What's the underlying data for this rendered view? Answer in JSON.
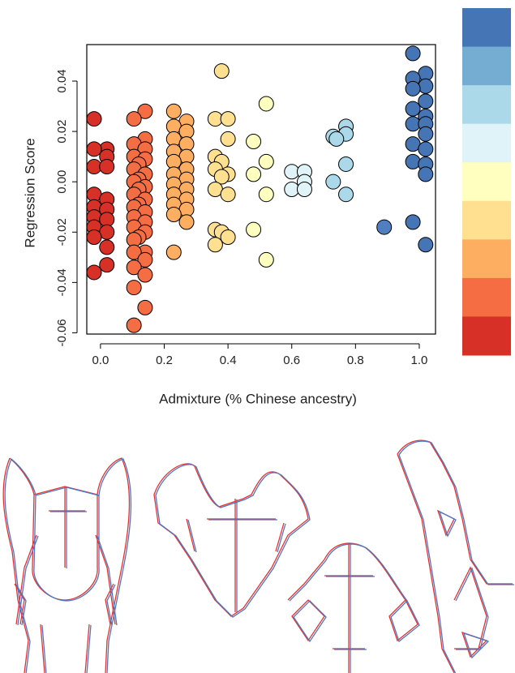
{
  "chart_data": {
    "type": "scatter",
    "x_label": "Admixture (% Chinese ancestry)",
    "y_label": "Regression Score",
    "xlim": [
      -0.043,
      1.051
    ],
    "ylim": [
      -0.0605,
      0.0545
    ],
    "xticks": [
      {
        "value": 0,
        "label": "0.0"
      },
      0.2,
      0.4,
      0.6,
      0.8,
      {
        "value": 1,
        "label": "1.0"
      }
    ],
    "yticks": [
      -0.06,
      -0.04,
      -0.02,
      {
        "value": 0,
        "label": "0.00"
      },
      0.02,
      0.04
    ],
    "colorbar": [
      "#4575b4",
      "#74add1",
      "#abd9e9",
      "#e0f3f8",
      "#ffffbf",
      "#fee090",
      "#fdae61",
      "#f46d43",
      "#d73027"
    ],
    "series": [
      {
        "color": "#d73027",
        "x": [
          -0.02,
          0.02,
          -0.02,
          0.02,
          -0.02,
          0.02,
          -0.02,
          0.02,
          -0.02,
          0.02,
          -0.02,
          0.02,
          -0.02,
          0.02,
          -0.02,
          0.02,
          0.02,
          -0.02
        ],
        "values": [
          0.025,
          0.013,
          0.013,
          0.01,
          0.006,
          0.006,
          -0.005,
          -0.007,
          -0.01,
          -0.011,
          -0.014,
          -0.015,
          -0.018,
          -0.02,
          -0.022,
          -0.026,
          -0.033,
          -0.036
        ]
      },
      {
        "color": "#f46d43",
        "x": [
          0.14,
          0.105,
          0.14,
          0.105,
          0.14,
          0.105,
          0.14,
          0.12,
          0.105,
          0.14,
          0.12,
          0.105,
          0.14,
          0.12,
          0.105,
          0.14,
          0.12,
          0.105,
          0.14,
          0.105,
          0.14,
          0.105,
          0.14,
          0.12,
          0.105,
          0.14,
          0.105,
          0.14,
          0.105,
          0.14,
          0.105,
          0.14,
          0.105
        ],
        "values": [
          0.028,
          0.025,
          0.017,
          0.015,
          0.013,
          0.01,
          0.009,
          0.007,
          0.005,
          0.003,
          0.001,
          0.0,
          -0.002,
          -0.003,
          -0.005,
          -0.007,
          -0.009,
          -0.01,
          -0.012,
          -0.014,
          -0.016,
          -0.018,
          -0.02,
          -0.022,
          -0.023,
          -0.028,
          -0.028,
          -0.031,
          -0.034,
          -0.037,
          -0.042,
          -0.05,
          -0.057
        ]
      },
      {
        "color": "#fdae61",
        "x": [
          0.23,
          0.27,
          0.23,
          0.27,
          0.23,
          0.27,
          0.23,
          0.27,
          0.23,
          0.27,
          0.23,
          0.27,
          0.23,
          0.27,
          0.23,
          0.27,
          0.23,
          0.27,
          0.23,
          0.27,
          0.23
        ],
        "values": [
          0.028,
          0.024,
          0.022,
          0.02,
          0.017,
          0.015,
          0.012,
          0.01,
          0.008,
          0.005,
          0.003,
          0.001,
          -0.001,
          -0.003,
          -0.005,
          -0.007,
          -0.009,
          -0.011,
          -0.013,
          -0.016,
          -0.028
        ]
      },
      {
        "color": "#fee090",
        "x": [
          0.38,
          0.36,
          0.4,
          0.4,
          0.36,
          0.38,
          0.36,
          0.4,
          0.38,
          0.36,
          0.4,
          0.36,
          0.38,
          0.4,
          0.36
        ],
        "values": [
          0.044,
          0.025,
          0.025,
          0.017,
          0.01,
          0.008,
          0.005,
          0.003,
          0.002,
          -0.003,
          -0.005,
          -0.019,
          -0.02,
          -0.022,
          -0.025
        ]
      },
      {
        "color": "#ffffbf",
        "x": [
          0.52,
          0.48,
          0.52,
          0.48,
          0.52,
          0.48,
          0.52
        ],
        "values": [
          0.031,
          0.016,
          0.008,
          0.003,
          -0.005,
          -0.019,
          -0.031
        ]
      },
      {
        "color": "#e0f3f8",
        "x": [
          0.6,
          0.64,
          0.64,
          0.6,
          0.64
        ],
        "values": [
          0.004,
          0.004,
          0.0,
          -0.003,
          -0.003
        ]
      },
      {
        "color": "#abd9e9",
        "x": [
          0.77,
          0.77,
          0.73,
          0.74,
          0.77,
          0.73,
          0.77
        ],
        "values": [
          0.022,
          0.019,
          0.018,
          0.017,
          0.007,
          0.0,
          -0.005
        ]
      },
      {
        "color": "#4f7fc0",
        "x": [
          0.89
        ],
        "values": [
          -0.018
        ]
      },
      {
        "color": "#4575b4",
        "x": [
          0.98,
          1.02,
          0.98,
          1.02,
          0.98,
          1.02,
          0.98,
          1.02,
          0.98,
          1.02,
          1.02,
          0.98,
          1.02,
          0.98,
          1.02,
          1.02,
          0.98,
          1.02
        ],
        "values": [
          0.051,
          0.043,
          0.041,
          0.038,
          0.037,
          0.032,
          0.029,
          0.026,
          0.023,
          0.023,
          0.019,
          0.015,
          0.013,
          0.008,
          0.007,
          0.003,
          -0.016,
          -0.025
        ]
      }
    ]
  }
}
